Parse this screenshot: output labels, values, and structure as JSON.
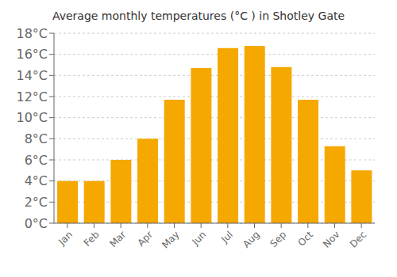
{
  "chart_data": {
    "type": "bar",
    "title": "Average monthly temperatures (°C ) in Shotley Gate",
    "categories": [
      "Jan",
      "Feb",
      "Mar",
      "Apr",
      "May",
      "Jun",
      "Jul",
      "Aug",
      "Sep",
      "Oct",
      "Nov",
      "Dec"
    ],
    "values": [
      4.0,
      4.0,
      6.0,
      8.0,
      11.7,
      14.7,
      16.6,
      16.8,
      14.8,
      11.7,
      7.3,
      5.0
    ],
    "color": "#F5A800",
    "ylim": [
      0,
      18
    ],
    "yticks": [
      {
        "value": 0,
        "label": "0°C"
      },
      {
        "value": 2,
        "label": "2°C"
      },
      {
        "value": 4,
        "label": "4°C"
      },
      {
        "value": 6,
        "label": "6°C"
      },
      {
        "value": 8,
        "label": "8°C"
      },
      {
        "value": 10,
        "label": "10°C"
      },
      {
        "value": 12,
        "label": "12°C"
      },
      {
        "value": 14,
        "label": "14°C"
      },
      {
        "value": 16,
        "label": "16°C"
      },
      {
        "value": 18,
        "label": "18°C"
      }
    ],
    "grid": true
  }
}
